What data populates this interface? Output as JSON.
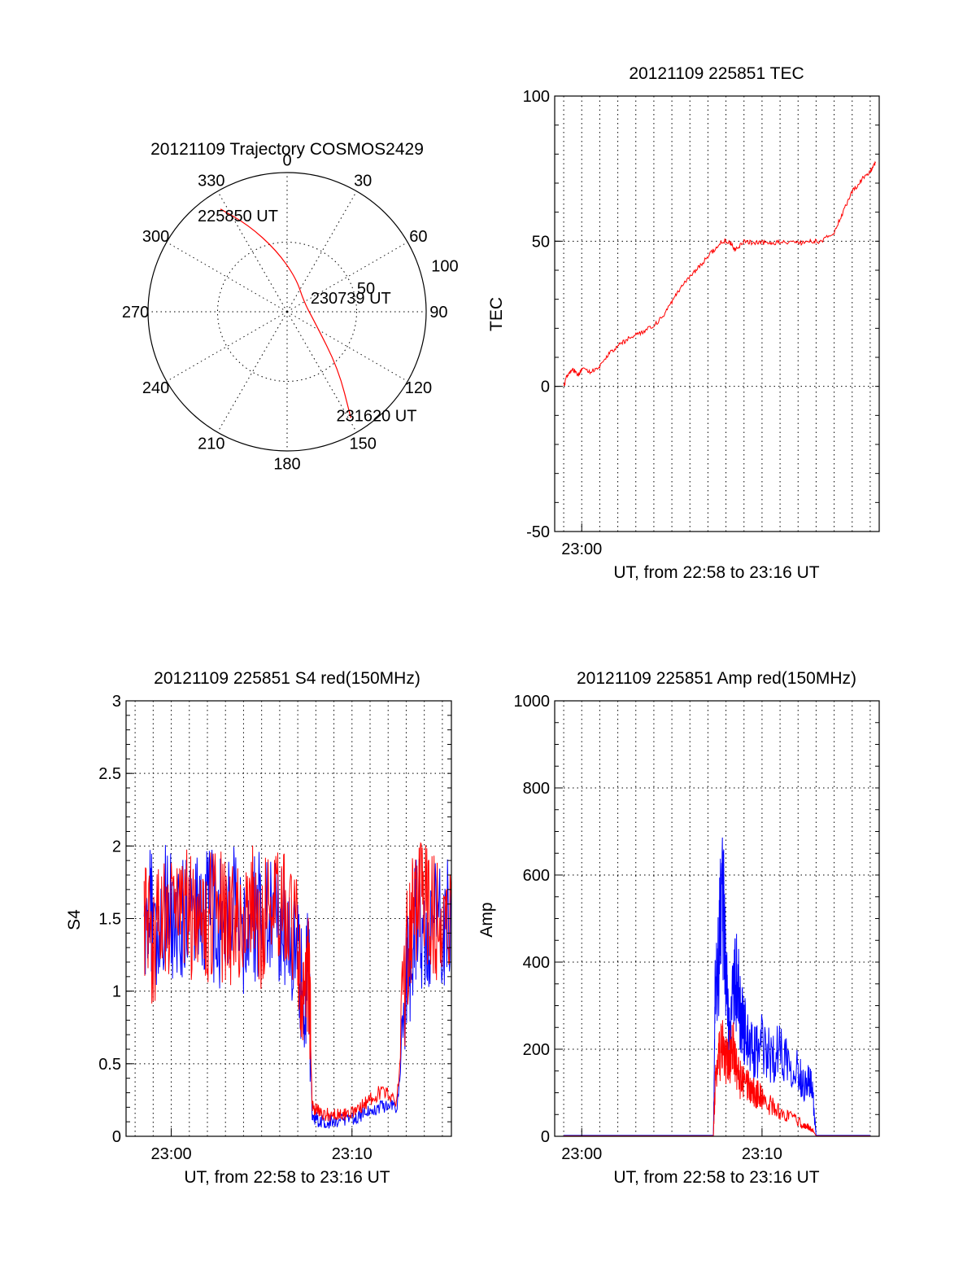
{
  "colors": {
    "red_series": "#ff0000",
    "blue_series": "#0000ff",
    "axes": "#000000"
  },
  "chart_data": [
    {
      "id": "trajectory",
      "type": "polar",
      "title": "20121109 Trajectory COSMOS2429",
      "angle_labels": [
        "0",
        "30",
        "60",
        "90",
        "120",
        "150",
        "180",
        "210",
        "240",
        "270",
        "300",
        "330"
      ],
      "radial_labels": [
        "50",
        "100"
      ],
      "rlim": [
        0,
        100
      ],
      "grid": true,
      "points": [
        {
          "angle": 327,
          "r": 88
        },
        {
          "angle": 336,
          "r": 68
        },
        {
          "angle": 350,
          "r": 45
        },
        {
          "angle": 15,
          "r": 25
        },
        {
          "angle": 60,
          "r": 14
        },
        {
          "angle": 110,
          "r": 21
        },
        {
          "angle": 138,
          "r": 55
        },
        {
          "angle": 149,
          "r": 89
        }
      ],
      "annotations": [
        {
          "text": "225850 UT",
          "angle": 333,
          "r": 78
        },
        {
          "text": "230739 UT",
          "angle": 77,
          "r": 47
        },
        {
          "text": "231620 UT",
          "angle": 139,
          "r": 98
        }
      ]
    },
    {
      "id": "tec",
      "type": "line",
      "title": "20121109 225851 TEC",
      "xlabel": "UT, from 22:58 to 23:16 UT",
      "ylabel": "TEC",
      "xlim": [
        -1.5,
        16.5
      ],
      "x_unit": "minutes after 23:00 UT",
      "ylim": [
        -50,
        100
      ],
      "y_ticks": [
        -50,
        0,
        50,
        100
      ],
      "x_ticks": [
        {
          "value": 0,
          "label": "23:00"
        }
      ],
      "grid": true,
      "series": [
        {
          "color": "#ff0000",
          "x": [
            -1.0,
            -0.8,
            -0.5,
            -0.2,
            0.0,
            0.5,
            1.0,
            1.5,
            2.0,
            2.5,
            3.0,
            3.5,
            4.0,
            4.5,
            5.0,
            5.5,
            6.0,
            6.5,
            7.0,
            7.5,
            7.8,
            8.2,
            8.5,
            9.0,
            9.5,
            10.0,
            10.5,
            11.0,
            11.8,
            12.3,
            12.8,
            13.3,
            14.0,
            14.5,
            15.0,
            15.5,
            16.0,
            16.3
          ],
          "y": [
            0,
            4,
            6,
            4,
            6,
            5,
            7,
            11,
            14,
            16,
            18,
            19,
            21,
            24,
            29,
            34,
            38,
            41,
            45,
            48,
            50,
            50,
            47,
            50,
            49.5,
            49.5,
            49.5,
            49.5,
            49.5,
            49.5,
            50,
            50,
            53,
            60,
            67,
            71,
            74,
            77
          ]
        }
      ]
    },
    {
      "id": "s4",
      "type": "line",
      "title": "20121109 225851 S4 red(150MHz)",
      "xlabel": "UT, from 22:58 to 23:16 UT",
      "ylabel": "S4",
      "xlim": [
        -2.5,
        15.5
      ],
      "x_unit": "minutes after 23:00 UT",
      "ylim": [
        0,
        3
      ],
      "y_ticks": [
        0,
        0.5,
        1,
        1.5,
        2,
        2.5,
        3
      ],
      "x_ticks": [
        {
          "value": 0,
          "label": "23:00"
        },
        {
          "value": 10,
          "label": "23:10"
        }
      ],
      "grid": true,
      "series": [
        {
          "color": "#0000ff",
          "x": [
            -1.5,
            -1.2,
            -1.0,
            -0.5,
            0.0,
            0.5,
            1.0,
            1.5,
            2.0,
            2.5,
            3.0,
            3.5,
            4.0,
            4.5,
            5.0,
            5.5,
            6.0,
            6.5,
            7.0,
            7.3,
            7.6,
            7.8,
            8.0,
            8.3,
            8.7,
            9.0,
            9.5,
            10.0,
            10.5,
            11.0,
            11.5,
            12.0,
            12.5,
            13.0,
            13.3,
            13.6,
            14.0,
            14.5,
            15.0,
            15.5
          ],
          "y": [
            1.5,
            1.7,
            1.4,
            1.6,
            1.5,
            1.45,
            1.55,
            1.5,
            1.6,
            1.45,
            1.5,
            1.55,
            1.4,
            1.5,
            1.55,
            1.45,
            1.5,
            1.4,
            1.2,
            1.0,
            1.15,
            0.15,
            0.12,
            0.1,
            0.1,
            0.12,
            0.1,
            0.12,
            0.15,
            0.18,
            0.2,
            0.22,
            0.2,
            1.0,
            1.3,
            1.5,
            1.4,
            1.55,
            1.45,
            1.6
          ]
        },
        {
          "color": "#ff0000",
          "x": [
            -1.5,
            -1.0,
            -0.5,
            0.0,
            0.5,
            1.0,
            1.5,
            2.0,
            2.5,
            3.0,
            3.5,
            4.0,
            4.5,
            5.0,
            5.5,
            6.0,
            6.5,
            7.0,
            7.3,
            7.6,
            7.8,
            8.0,
            8.5,
            9.0,
            9.5,
            10.0,
            10.5,
            11.0,
            11.5,
            12.0,
            12.5,
            13.0,
            13.3,
            13.6,
            14.0,
            14.5,
            15.0,
            15.5
          ],
          "y": [
            1.5,
            1.3,
            1.6,
            1.45,
            1.5,
            1.55,
            1.4,
            1.5,
            1.6,
            1.45,
            1.5,
            1.55,
            1.6,
            1.45,
            1.5,
            1.6,
            1.5,
            1.3,
            1.0,
            1.2,
            0.2,
            0.18,
            0.15,
            0.15,
            0.14,
            0.16,
            0.2,
            0.25,
            0.3,
            0.3,
            0.25,
            1.2,
            1.5,
            1.6,
            1.7,
            1.5,
            1.55,
            1.6
          ]
        }
      ]
    },
    {
      "id": "amp",
      "type": "line",
      "title": "20121109 225851 Amp red(150MHz)",
      "xlabel": "UT, from 22:58 to 23:16 UT",
      "ylabel": "Amp",
      "xlim": [
        -1.5,
        16.5
      ],
      "x_unit": "minutes after 23:00 UT",
      "ylim": [
        0,
        1000
      ],
      "y_ticks": [
        0,
        200,
        400,
        600,
        800,
        1000
      ],
      "x_ticks": [
        {
          "value": 0,
          "label": "23:00"
        },
        {
          "value": 10,
          "label": "23:10"
        }
      ],
      "grid": true,
      "series": [
        {
          "color": "#0000ff",
          "x": [
            -1.0,
            0.0,
            2.0,
            4.0,
            6.0,
            7.3,
            7.4,
            7.6,
            7.8,
            8.0,
            8.2,
            8.4,
            8.6,
            8.8,
            9.0,
            9.3,
            9.6,
            10.0,
            10.5,
            11.0,
            11.5,
            12.0,
            12.3,
            12.6,
            12.8,
            13.0,
            14.0,
            16.0
          ],
          "y": [
            2,
            2,
            2,
            2,
            2,
            2,
            300,
            400,
            580,
            350,
            240,
            320,
            360,
            280,
            250,
            200,
            190,
            210,
            180,
            200,
            180,
            150,
            120,
            130,
            100,
            2,
            2,
            2
          ]
        },
        {
          "color": "#ff0000",
          "x": [
            -1.0,
            0.0,
            2.0,
            4.0,
            6.0,
            7.3,
            7.4,
            7.6,
            7.8,
            8.0,
            8.2,
            8.4,
            8.6,
            8.8,
            9.0,
            9.3,
            9.6,
            10.0,
            10.5,
            11.0,
            11.5,
            12.0,
            12.3,
            12.6,
            12.8,
            13.0,
            14.0,
            16.0
          ],
          "y": [
            1,
            1,
            1,
            1,
            1,
            1,
            120,
            180,
            200,
            170,
            180,
            200,
            150,
            130,
            120,
            110,
            100,
            90,
            70,
            55,
            45,
            35,
            25,
            20,
            15,
            1,
            1,
            1
          ]
        }
      ]
    }
  ]
}
